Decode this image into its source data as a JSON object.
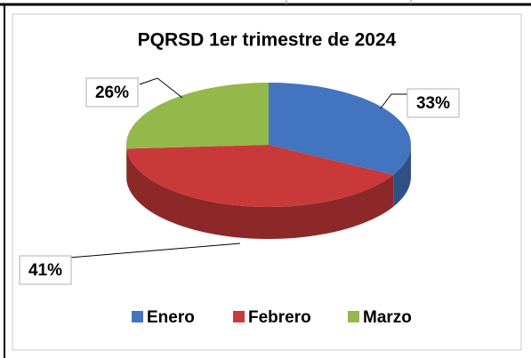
{
  "chart_data": {
    "type": "pie",
    "title": "PQRSD 1er trimestre de 2024",
    "categories": [
      "Enero",
      "Febrero",
      "Marzo"
    ],
    "values": [
      33,
      41,
      26
    ],
    "value_labels": [
      "33%",
      "41%",
      "26%"
    ],
    "colors": [
      "#4374c0",
      "#c9393a",
      "#94b84a"
    ],
    "legend": "bottom"
  }
}
